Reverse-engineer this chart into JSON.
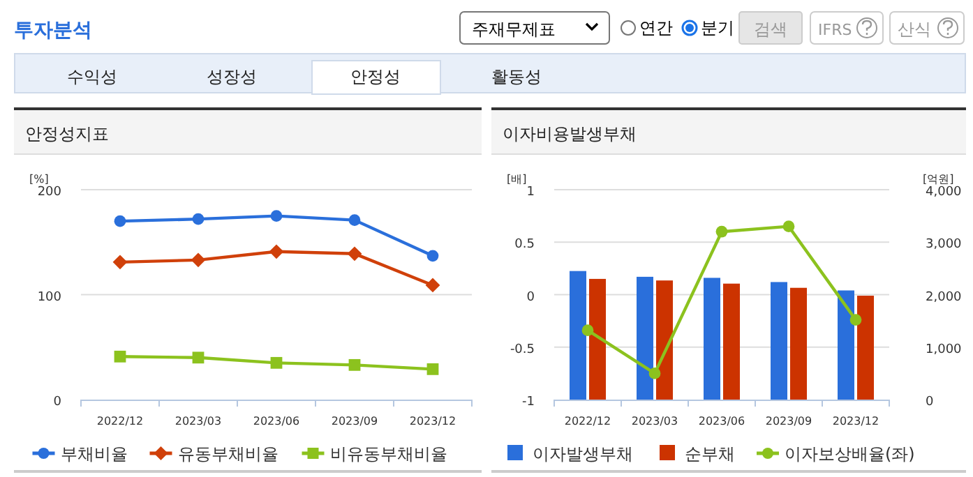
{
  "chart_data": [
    {
      "type": "other",
      "annotations": [
        "투자분석",
        "주재무제표",
        "연간",
        "분기",
        "검색",
        "IFRS",
        "산식",
        "수익성",
        "성장성",
        "안정성",
        "활동성"
      ]
    },
    {
      "type": "line",
      "title": "안정성지표",
      "ylabel": "[%]",
      "categories": [
        "2022/12",
        "2023/03",
        "2023/06",
        "2023/09",
        "2023/12"
      ],
      "ylim": [
        0,
        200
      ],
      "yticks": [
        0,
        100,
        200
      ],
      "grid": "y",
      "legend": "bottom",
      "series": [
        {
          "name": "부채비율",
          "color": "#2a6fdb",
          "marker": "circle",
          "values": [
            170,
            172,
            175,
            171,
            137
          ]
        },
        {
          "name": "유동부채비율",
          "color": "#d0400a",
          "marker": "diamond",
          "values": [
            131,
            133,
            141,
            139,
            109
          ]
        },
        {
          "name": "비유동부채비율",
          "color": "#8cc21e",
          "marker": "square",
          "values": [
            41,
            40,
            35,
            33,
            29
          ]
        }
      ]
    },
    {
      "type": "bar",
      "title": "이자비용발생부채",
      "ylabel": "[배]",
      "y2label": "[억원]",
      "categories": [
        "2022/12",
        "2023/03",
        "2023/06",
        "2023/09",
        "2023/12"
      ],
      "ylim": [
        -1,
        1
      ],
      "yticks": [
        -1,
        -0.5,
        0,
        0.5,
        1
      ],
      "y2lim": [
        0,
        4000
      ],
      "y2ticks": [
        0,
        {
          "value": 1000,
          "label": "1,000"
        },
        {
          "value": 2000,
          "label": "2,000"
        },
        {
          "value": 3000,
          "label": "3,000"
        },
        {
          "value": 4000,
          "label": "4,000"
        }
      ],
      "grid": "y",
      "legend": "bottom",
      "series": [
        {
          "name": "이자발생부채",
          "color": "#2a6fdb",
          "axis": "y2",
          "values": [
            2450,
            2340,
            2320,
            2240,
            2080
          ]
        },
        {
          "name": "순부채",
          "color": "#cc3300",
          "axis": "y2",
          "values": [
            2300,
            2270,
            2210,
            2130,
            1980
          ]
        },
        {
          "name": "이자보상배율(좌)",
          "type": "line",
          "color": "#8cc21e",
          "marker": "circle",
          "axis": "y",
          "values": [
            -0.34,
            -0.75,
            0.6,
            0.65,
            -0.24
          ]
        }
      ]
    }
  ]
}
